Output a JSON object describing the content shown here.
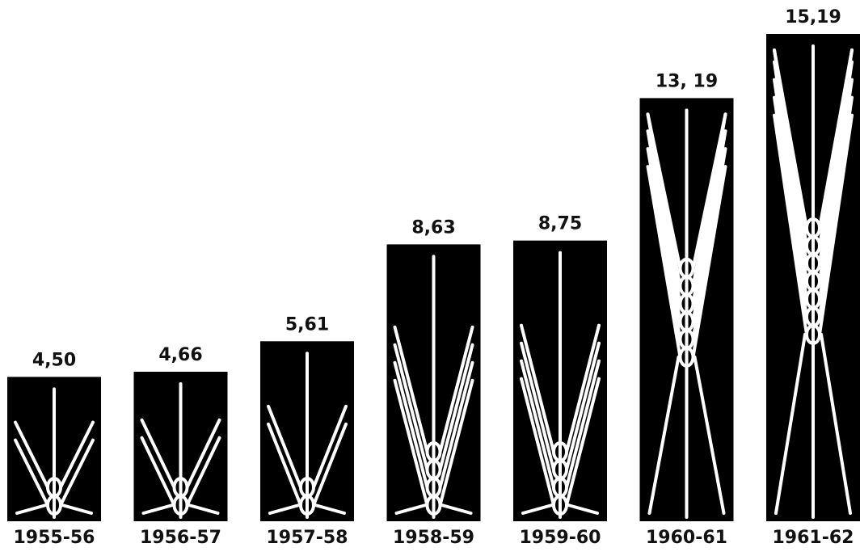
{
  "chart_data": {
    "type": "bar",
    "categories": [
      "1955-56",
      "1956-57",
      "1957-58",
      "1958-59",
      "1959-60",
      "1960-61",
      "1961-62"
    ],
    "values": [
      4.5,
      4.66,
      5.61,
      8.63,
      8.75,
      13.19,
      15.19
    ],
    "value_labels": [
      "4,50",
      "4,66",
      "5,61",
      "8,63",
      "8,75",
      "13, 19",
      "15,19"
    ],
    "color": "#000000"
  }
}
